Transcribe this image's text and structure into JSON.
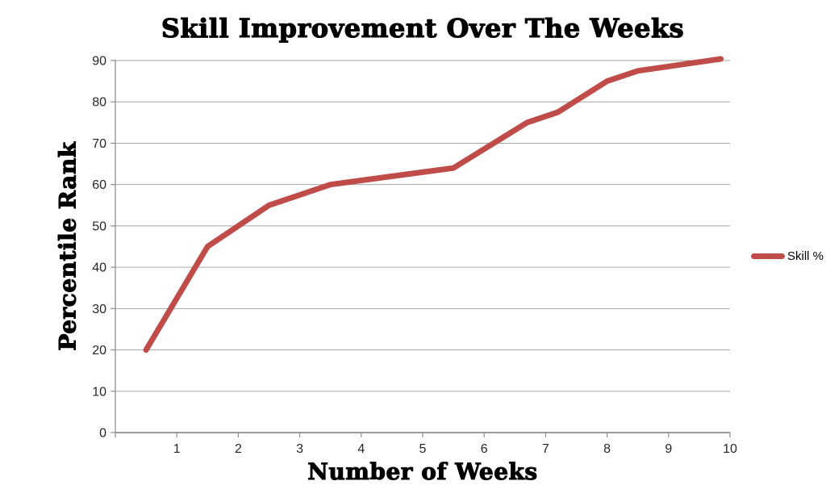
{
  "chart_data": {
    "type": "line",
    "title": "Skill Improvement Over The Weeks",
    "xlabel": "Number of Weeks",
    "ylabel": "Percentile Rank",
    "xlim": [
      0,
      10
    ],
    "ylim": [
      0,
      90
    ],
    "x_ticks": [
      1,
      2,
      3,
      4,
      5,
      6,
      7,
      8,
      9,
      10
    ],
    "y_ticks": [
      0,
      10,
      20,
      30,
      40,
      50,
      60,
      70,
      80,
      90
    ],
    "grid": "horizontal-gridlines-only",
    "legend_position": "right-middle",
    "series": [
      {
        "name": "Skill %",
        "color": "#bf4c49",
        "points": [
          [
            0.5,
            20
          ],
          [
            1.5,
            45
          ],
          [
            2.5,
            55
          ],
          [
            3.5,
            60
          ],
          [
            4.5,
            62
          ],
          [
            5.5,
            64
          ],
          [
            6.7,
            75
          ],
          [
            7.2,
            77.5
          ],
          [
            8.0,
            85
          ],
          [
            8.5,
            87.5
          ],
          [
            9.85,
            90.4
          ]
        ]
      }
    ],
    "colors": {
      "series_red": "#bf4c49",
      "gridline": "#a6a6a6",
      "axis": "#8e8e8e",
      "tick_label": "#262626",
      "title_text": "#000000",
      "background": "#ffffff"
    }
  }
}
